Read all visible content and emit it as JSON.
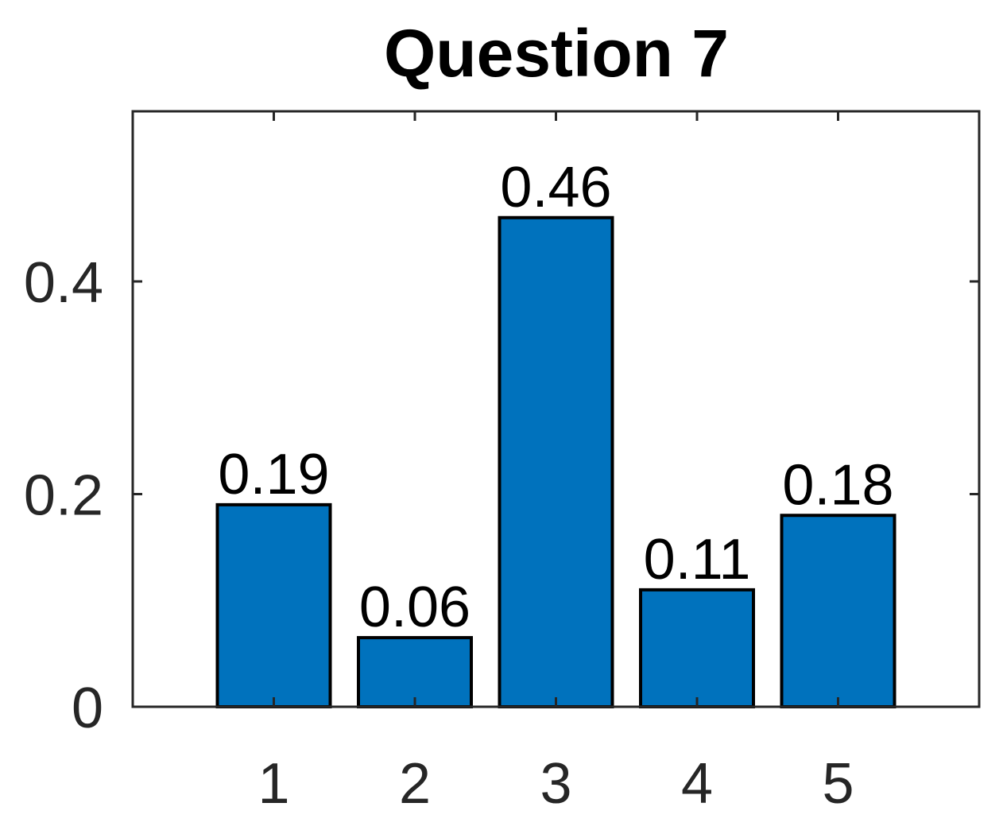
{
  "chart_data": {
    "type": "bar",
    "title": "Question 7",
    "xlabel": "",
    "ylabel": "",
    "categories": [
      "1",
      "2",
      "3",
      "4",
      "5"
    ],
    "values": [
      0.19,
      0.065,
      0.46,
      0.11,
      0.18
    ],
    "data_labels": [
      "0.19",
      "0.06",
      "0.46",
      "0.11",
      "0.18"
    ],
    "xlim": [
      0.0,
      6.0
    ],
    "ylim": [
      0,
      0.56
    ],
    "yticks": [
      0,
      0.2,
      0.4
    ],
    "ytick_labels": [
      "0",
      "0.2",
      "0.4"
    ],
    "grid": false,
    "legend": "none",
    "bar_color": "#0072BD",
    "bar_edge_color": "#000000",
    "axis_color": "#262626"
  }
}
